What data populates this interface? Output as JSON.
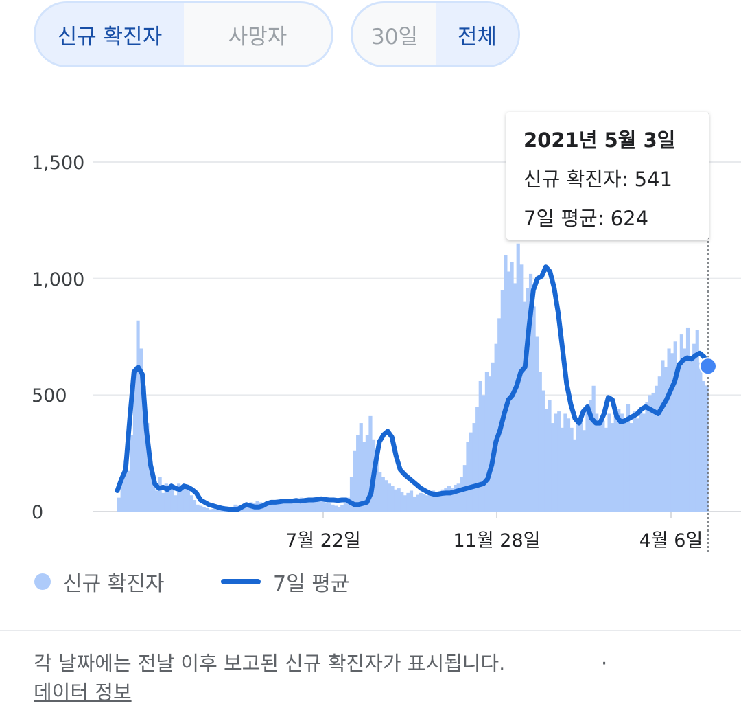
{
  "toggles": {
    "metric": [
      {
        "label": "신규 확진자",
        "active": true
      },
      {
        "label": "사망자",
        "active": false
      }
    ],
    "range": [
      {
        "label": "30일",
        "active": false
      },
      {
        "label": "전체",
        "active": true
      }
    ]
  },
  "tooltip": {
    "date": "2021년 5월 3일",
    "cases_line": "신규 확진자: 541",
    "avg_line": "7일 평균: 624"
  },
  "legend": {
    "cases_label": "신규 확진자",
    "avg_label": "7일 평균"
  },
  "footnote": {
    "text": "각 날짜에는 전날 이후 보고된 신규 확진자가 표시됩니다.",
    "separator": "·",
    "link_label": "데이터 정보"
  },
  "colors": {
    "bars": "#aecbfa",
    "avg_line": "#1967d2",
    "endpoint": "#4285f4",
    "gridline": "#e8eaed",
    "active_toggle_text": "#174ea6"
  },
  "chart_data": {
    "type": "bar",
    "ylim": [
      0,
      1500
    ],
    "yticks": [
      {
        "value": 0,
        "label": "0"
      },
      {
        "value": 500,
        "label": "500"
      },
      {
        "value": 1000,
        "label": "1,000"
      },
      {
        "value": 1500,
        "label": "1,500"
      }
    ],
    "x_labels": [
      "7월 22일",
      "11월 28일",
      "4월 6일"
    ],
    "grid": true,
    "legend_position": "bottom-left",
    "series": [
      {
        "name": "신규 확진자",
        "kind": "bar",
        "values": [
          60,
          150,
          220,
          175,
          330,
          580,
          820,
          700,
          540,
          380,
          200,
          120,
          90,
          150,
          80,
          120,
          95,
          115,
          70,
          120,
          90,
          110,
          100,
          70,
          50,
          30,
          25,
          20,
          15,
          10,
          12,
          8,
          10,
          6,
          5,
          8,
          20,
          30,
          25,
          20,
          18,
          25,
          40,
          35,
          45,
          40,
          38,
          42,
          45,
          40,
          35,
          50,
          45,
          40,
          45,
          55,
          50,
          48,
          60,
          52,
          45,
          55,
          50,
          45,
          48,
          55,
          40,
          35,
          30,
          25,
          20,
          28,
          35,
          60,
          150,
          260,
          330,
          380,
          300,
          330,
          410,
          310,
          240,
          170,
          150,
          135,
          120,
          110,
          95,
          100,
          85,
          70,
          80,
          90,
          65,
          72,
          80,
          75,
          70,
          85,
          90,
          80,
          85,
          95,
          100,
          110,
          100,
          115,
          120,
          150,
          200,
          300,
          340,
          380,
          450,
          560,
          500,
          600,
          580,
          640,
          720,
          830,
          950,
          1100,
          1030,
          1070,
          980,
          1150,
          1060,
          900,
          960,
          1020,
          880,
          750,
          600,
          520,
          440,
          480,
          380,
          420,
          430,
          360,
          420,
          400,
          360,
          310,
          380,
          400,
          350,
          430,
          480,
          540,
          420,
          370,
          390,
          360,
          420,
          380,
          410,
          440,
          420,
          400,
          460,
          380,
          430,
          400,
          440,
          420,
          470,
          500,
          510,
          540,
          580,
          650,
          620,
          700,
          680,
          730,
          640,
          760,
          700,
          790,
          650,
          720,
          780,
          640,
          560,
          541
        ]
      },
      {
        "name": "7일 평균",
        "kind": "line",
        "values": [
          90,
          140,
          180,
          400,
          600,
          620,
          590,
          350,
          200,
          120,
          100,
          105,
          95,
          110,
          100,
          95,
          110,
          105,
          95,
          80,
          50,
          40,
          30,
          25,
          20,
          15,
          12,
          10,
          8,
          10,
          20,
          30,
          25,
          20,
          20,
          25,
          35,
          40,
          40,
          42,
          45,
          45,
          45,
          48,
          45,
          48,
          50,
          50,
          52,
          55,
          52,
          50,
          50,
          48,
          50,
          50,
          40,
          30,
          30,
          35,
          40,
          80,
          200,
          300,
          330,
          345,
          320,
          240,
          180,
          160,
          145,
          130,
          115,
          100,
          90,
          80,
          75,
          75,
          78,
          80,
          80,
          85,
          90,
          95,
          100,
          105,
          110,
          115,
          120,
          140,
          200,
          300,
          350,
          420,
          480,
          500,
          540,
          600,
          620,
          800,
          950,
          1000,
          1010,
          1050,
          1030,
          960,
          850,
          700,
          550,
          460,
          400,
          380,
          430,
          450,
          400,
          380,
          380,
          420,
          490,
          480,
          410,
          385,
          390,
          400,
          410,
          420,
          440,
          450,
          440,
          430,
          420,
          450,
          480,
          520,
          560,
          630,
          650,
          660,
          655,
          670,
          680,
          665,
          624
        ]
      }
    ]
  }
}
